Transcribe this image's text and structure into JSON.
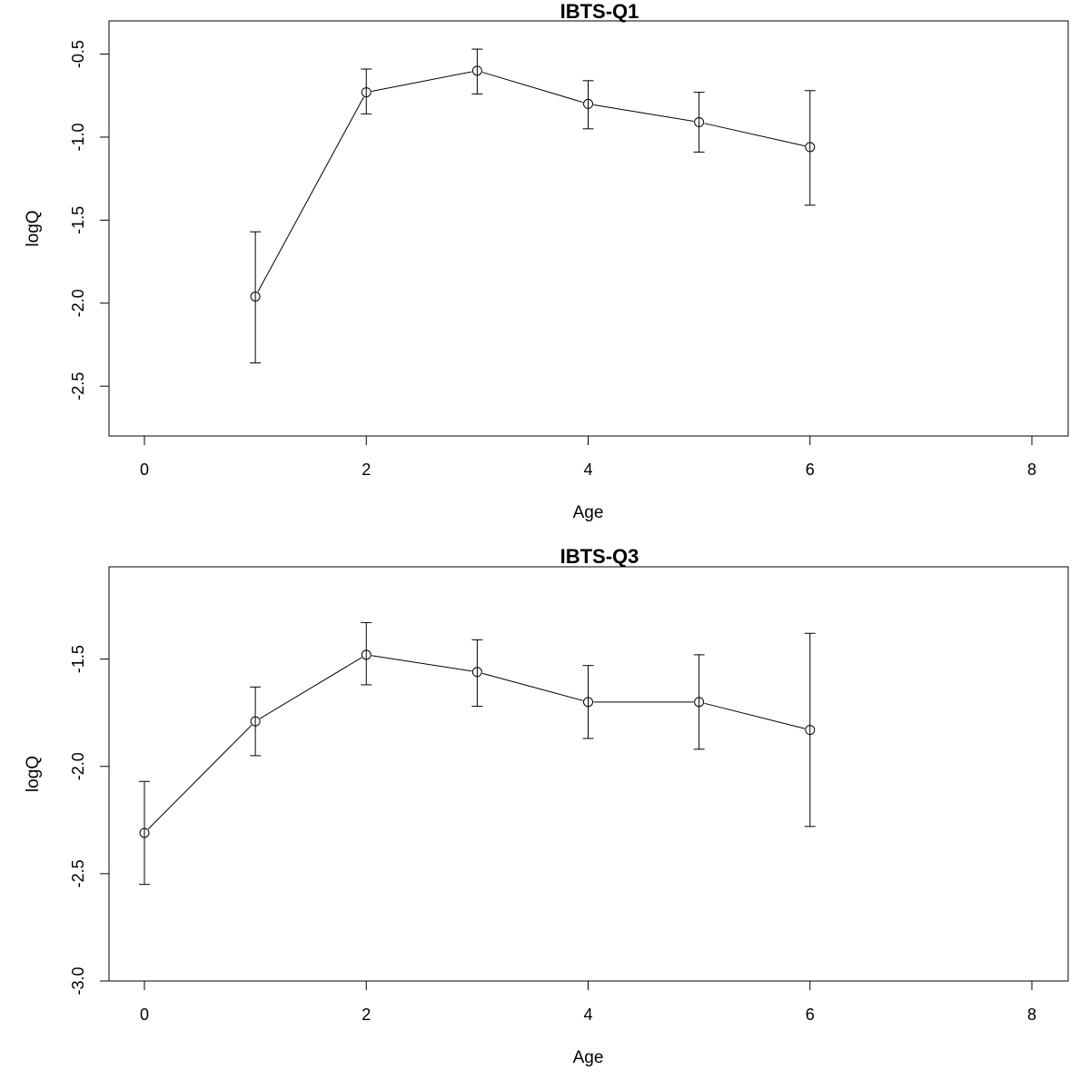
{
  "chart_data": [
    {
      "type": "line",
      "title": "IBTS-Q1",
      "xlabel": "Age",
      "ylabel": "logQ",
      "xlim": [
        0,
        8
      ],
      "ylim": [
        -2.8,
        -0.3
      ],
      "x_ticks": [
        0,
        2,
        4,
        6,
        8
      ],
      "x_tick_labels": [
        "0",
        "2",
        "4",
        "6",
        "8"
      ],
      "y_ticks": [
        -2.5,
        -2.0,
        -1.5,
        -1.0,
        -0.5
      ],
      "y_tick_labels": [
        "-2.5",
        "-2.0",
        "-1.5",
        "-1.0",
        "-0.5"
      ],
      "grid": false,
      "x": [
        1,
        2,
        3,
        4,
        5,
        6
      ],
      "y": [
        -1.96,
        -0.73,
        -0.6,
        -0.8,
        -0.91,
        -1.06
      ],
      "lower": [
        -2.36,
        -0.86,
        -0.74,
        -0.95,
        -1.09,
        -1.41
      ],
      "upper": [
        -1.57,
        -0.59,
        -0.47,
        -0.66,
        -0.73,
        -0.72
      ]
    },
    {
      "type": "line",
      "title": "IBTS-Q3",
      "xlabel": "Age",
      "ylabel": "logQ",
      "xlim": [
        0,
        8
      ],
      "ylim": [
        -3.0,
        -1.07
      ],
      "x_ticks": [
        0,
        2,
        4,
        6,
        8
      ],
      "x_tick_labels": [
        "0",
        "2",
        "4",
        "6",
        "8"
      ],
      "y_ticks": [
        -3.0,
        -2.5,
        -2.0,
        -1.5
      ],
      "y_tick_labels": [
        "-3.0",
        "-2.5",
        "-2.0",
        "-1.5"
      ],
      "grid": false,
      "x": [
        0,
        1,
        2,
        3,
        4,
        5,
        6
      ],
      "y": [
        -2.31,
        -1.79,
        -1.48,
        -1.56,
        -1.7,
        -1.7,
        -1.83
      ],
      "lower": [
        -2.55,
        -1.95,
        -1.62,
        -1.72,
        -1.87,
        -1.92,
        -2.28
      ],
      "upper": [
        -2.07,
        -1.63,
        -1.33,
        -1.41,
        -1.53,
        -1.48,
        -1.38
      ]
    }
  ]
}
